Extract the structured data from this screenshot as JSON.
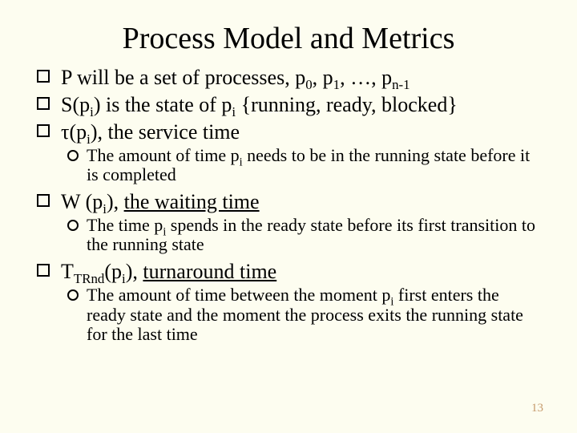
{
  "background_color": "#fdfdf0",
  "text_color": "#000000",
  "page_number_color": "#c59a6b",
  "title": {
    "text": "Process Model and Metrics",
    "fontsize": 38
  },
  "bullets": {
    "fontsize_level1": 26,
    "fontsize_level2": 22,
    "marker_level1": "hollow-square",
    "marker_level2": "hollow-circle"
  },
  "b1": {
    "prefix": "P will be a set of processes, p",
    "s0": "0",
    "mid1": ", p",
    "s1": "1",
    "mid2": ", …, p",
    "sn": "n-1"
  },
  "b2": {
    "p1": "S(p",
    "si1": "i",
    "p2": ") is the state of p",
    "si2": "i",
    "p3": " {running, ready, blocked}"
  },
  "b3": {
    "p1": "τ(p",
    "si": "i",
    "p2": "), the service time"
  },
  "b3a": {
    "p1": "The amount of time p",
    "si": "i",
    "p2": " needs to be in the running state before it is completed"
  },
  "b4": {
    "p1": "W (p",
    "si": "i",
    "p2": "), ",
    "ul": "the waiting time"
  },
  "b4a": {
    "p1": "The time p",
    "si": "i",
    "p2": " spends in the ready state before its first transition to the running state"
  },
  "b5": {
    "p1": "T",
    "st": "TRnd",
    "p2": "(p",
    "si": "i",
    "p3": "), ",
    "ul": "turnaround time"
  },
  "b5a": {
    "p1": "The amount of time between the moment p",
    "si": "i",
    "p2": " first enters the ready state and the moment the process exits the running state for the last time"
  },
  "page_number": "13"
}
